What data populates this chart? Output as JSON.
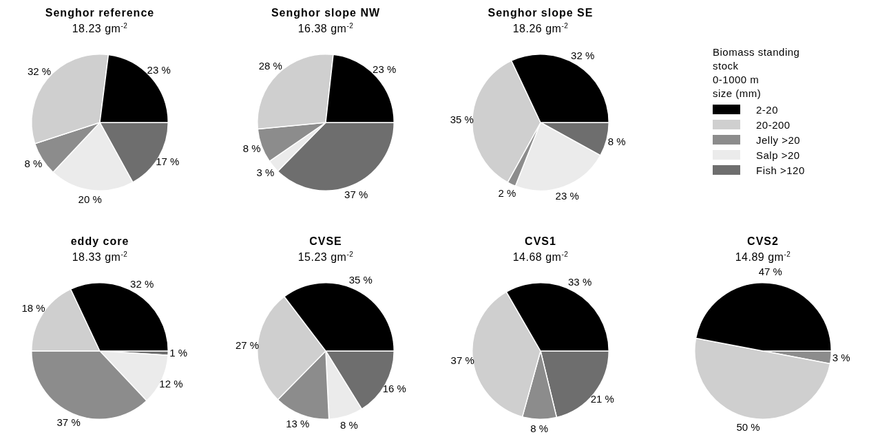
{
  "chart_data": [
    {
      "type": "pie",
      "title": "Senghor reference",
      "subtitle": "18.23 gm$^{-2}$",
      "categories": [
        null,
        null,
        null,
        null,
        null
      ],
      "values": [
        23,
        32,
        8,
        20,
        17
      ],
      "value_labels": [
        "23 %",
        "32 %",
        "8 %",
        "20 %",
        "17 %"
      ],
      "colors": [
        "#000000",
        "#cfcfcf",
        "#8c8c8c",
        "#ebebeb",
        "#6e6e6e"
      ]
    },
    {
      "type": "pie",
      "title": "Senghor slope NW",
      "subtitle": "16.38 gm$^{-2}$",
      "categories": [
        null,
        null,
        null,
        null,
        null
      ],
      "values": [
        23,
        28,
        8,
        3,
        37
      ],
      "value_labels": [
        "23 %",
        "28 %",
        "8 %",
        "3 %",
        "37 %"
      ],
      "colors": [
        "#000000",
        "#cfcfcf",
        "#8c8c8c",
        "#ebebeb",
        "#6e6e6e"
      ]
    },
    {
      "type": "pie",
      "title": "Senghor slope SE",
      "subtitle": "18.26 gm$^{-2}$",
      "categories": [
        "2-20",
        "20-200",
        "Jelly >20",
        "Salp >20",
        "Fish >120"
      ],
      "values": [
        32,
        35,
        2,
        23,
        8
      ],
      "value_labels": [
        "32 %",
        "35 %",
        "2 %",
        "23 %",
        "8 %"
      ],
      "colors": [
        "#000000",
        "#cfcfcf",
        "#8c8c8c",
        "#ebebeb",
        "#6e6e6e"
      ],
      "legend": "right",
      "legend_title": "Biomass standing stock\n0-1000 m\nsize (mm)"
    },
    {
      "type": "pie",
      "title": "eddy core",
      "subtitle": "18.33 gm$^{-2}$",
      "categories": [
        null,
        null,
        null,
        null,
        null
      ],
      "values": [
        32,
        18,
        37,
        12,
        1
      ],
      "value_labels": [
        "32 %",
        "18 %",
        "37 %",
        "12 %",
        "1 %"
      ],
      "colors": [
        "#000000",
        "#cfcfcf",
        "#8c8c8c",
        "#ebebeb",
        "#6e6e6e"
      ]
    },
    {
      "type": "pie",
      "title": "CVSE",
      "subtitle": "15.23 gm$^{-2}$",
      "categories": [
        null,
        null,
        null,
        null,
        null
      ],
      "values": [
        35,
        27,
        13,
        8,
        16
      ],
      "value_labels": [
        "35 %",
        "27 %",
        "13 %",
        "8 %",
        "16 %"
      ],
      "colors": [
        "#000000",
        "#cfcfcf",
        "#8c8c8c",
        "#ebebeb",
        "#6e6e6e"
      ]
    },
    {
      "type": "pie",
      "title": "CVS1",
      "subtitle": "14.68 gm$^{-2}$",
      "categories": [
        null,
        null,
        null,
        null,
        null
      ],
      "values": [
        33,
        37,
        8,
        null,
        21
      ],
      "value_labels": [
        "33 %",
        "37 %",
        "8 %",
        null,
        "21 %"
      ],
      "colors": [
        "#000000",
        "#cfcfcf",
        "#8c8c8c",
        "#ebebeb",
        "#6e6e6e"
      ]
    },
    {
      "type": "pie",
      "title": "CVS2",
      "subtitle": "14.89 gm$^{-2}$",
      "categories": [
        null,
        null,
        null,
        null,
        null
      ],
      "values": [
        47,
        50,
        3,
        null,
        null
      ],
      "value_labels": [
        "47 %",
        "50 %",
        "3 %",
        null,
        null
      ],
      "colors": [
        "#000000",
        "#cfcfcf",
        "#8c8c8c",
        "#ebebeb",
        "#6e6e6e"
      ]
    }
  ]
}
